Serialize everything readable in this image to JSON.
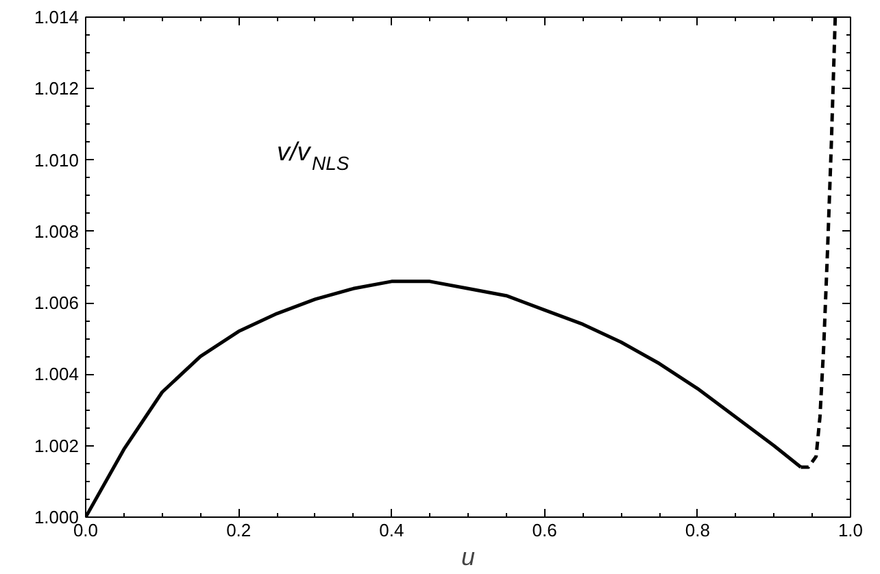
{
  "chart_data": {
    "type": "line",
    "xlabel": "u",
    "annotations": [
      "v/v$_{NLS}$"
    ],
    "series": [
      {
        "color": "#000000",
        "line_style": "solid",
        "x": [
          0.0,
          0.05,
          0.1,
          0.15,
          0.2,
          0.25,
          0.3,
          0.35,
          0.4,
          0.42,
          0.45,
          0.5,
          0.55,
          0.6,
          0.65,
          0.7,
          0.75,
          0.8,
          0.85,
          0.9,
          0.935
        ],
        "values": [
          1.0,
          1.0019,
          1.0035,
          1.0045,
          1.0052,
          1.0057,
          1.0061,
          1.0064,
          1.0066,
          1.0066,
          1.0066,
          1.0064,
          1.0062,
          1.0058,
          1.0054,
          1.0049,
          1.0043,
          1.0036,
          1.0028,
          1.002,
          1.0014
        ]
      },
      {
        "color": "#000000",
        "line_style": "dashed",
        "x": [
          0.935,
          0.945,
          0.955,
          0.96,
          0.965,
          0.97,
          0.975,
          0.98
        ],
        "values": [
          1.0014,
          1.0014,
          1.0017,
          1.0028,
          1.0048,
          1.0075,
          1.0105,
          1.014
        ]
      }
    ],
    "xlim": [
      0,
      1
    ],
    "ylim": [
      1.0,
      1.014
    ],
    "xticks": [
      {
        "value": 0,
        "label": "0.0"
      },
      0.2,
      0.4,
      0.6,
      0.8,
      {
        "value": 1,
        "label": "1.0"
      }
    ],
    "yticks": [
      {
        "value": 1.0,
        "label": "1.000"
      },
      1.002,
      1.004,
      1.006,
      1.008,
      {
        "value": 1.01,
        "label": "1.010"
      },
      1.012,
      1.014
    ],
    "grid": false
  }
}
